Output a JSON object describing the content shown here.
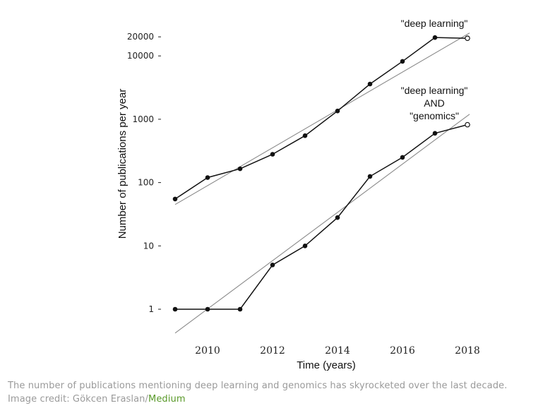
{
  "chart_data": {
    "type": "line",
    "xlabel": "Time (years)",
    "ylabel": "Number of publications per year",
    "x": [
      2009,
      2010,
      2011,
      2012,
      2013,
      2014,
      2015,
      2016,
      2017,
      2018
    ],
    "x_ticks": [
      2010,
      2012,
      2014,
      2016,
      2018
    ],
    "y_scale": "log",
    "y_ticks": [
      1,
      10,
      100,
      1000,
      10000,
      20000
    ],
    "y_tick_labels": [
      "1",
      "10",
      "100",
      "1000",
      "10000",
      "20000"
    ],
    "xlim": [
      2009,
      2018
    ],
    "ylim": [
      0.4,
      25000
    ],
    "grid": false,
    "series": [
      {
        "name": "\"deep learning\"",
        "values": [
          55,
          120,
          165,
          280,
          550,
          1350,
          3600,
          8200,
          19500,
          19000
        ],
        "last_point_hollow": true,
        "trend": [
          45,
          23000
        ]
      },
      {
        "name": "\"deep learning\" AND \"genomics\"",
        "values": [
          1,
          1,
          1,
          5,
          10,
          28,
          125,
          250,
          600,
          820
        ],
        "last_point_hollow": true,
        "trend": [
          0.42,
          1200
        ]
      }
    ],
    "annotations": [
      {
        "series": 0,
        "lines": [
          "\"deep learning\""
        ]
      },
      {
        "series": 1,
        "lines": [
          "\"deep learning\"",
          "AND",
          "\"genomics\""
        ]
      }
    ]
  },
  "caption": {
    "text": "The number of publications mentioning deep learning and genomics has skyrocketed over the last decade. Image credit: Gökcen Eraslan/",
    "link_text": "Medium"
  },
  "colors": {
    "line": "#111111",
    "trend": "#8a8a8a",
    "caption": "#9a9a9a",
    "link": "#5a9a2a"
  }
}
